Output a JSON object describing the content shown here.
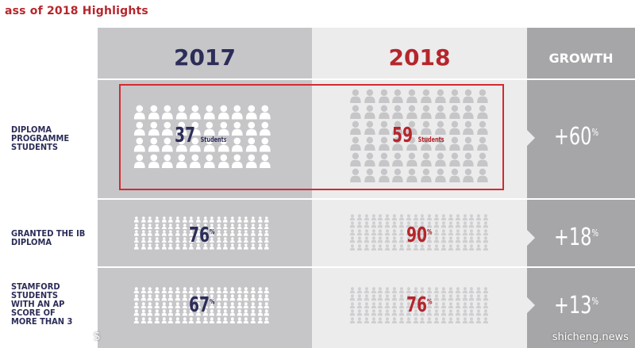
{
  "title": "ass of 2018 Highlights",
  "headers": {
    "year1": "2017",
    "year2": "2018",
    "growth": "GROWTH"
  },
  "rows": [
    {
      "label": "DIPLOMA PROGRAMME STUDENTS",
      "v2017": "37",
      "v2017_unit": "Students",
      "v2018": "59",
      "v2018_unit": "Students",
      "growth": "+60",
      "growth_unit": "%"
    },
    {
      "label": "GRANTED THE IB DIPLOMA",
      "v2017": "76",
      "v2017_unit": "%",
      "v2018": "90",
      "v2018_unit": "%",
      "growth": "+18",
      "growth_unit": "%"
    },
    {
      "label": "STAMFORD STUDENTS WITH AN AP SCORE OF MORE THAN 3",
      "v2017": "67",
      "v2017_unit": "%",
      "v2018": "76",
      "v2018_unit": "%",
      "growth": "+13",
      "growth_unit": "%"
    }
  ],
  "watermark": {
    "left": "S",
    "right": "shicheng.news"
  },
  "colors": {
    "year2017": "#2c2d58",
    "year2018": "#b5262c",
    "highlight": "#d42a2f",
    "col2017_bg": "#c6c6c9",
    "col2018_bg": "#ececed",
    "growth_bg": "#a6a6a8"
  },
  "icons": {
    "person": "person-icon"
  }
}
